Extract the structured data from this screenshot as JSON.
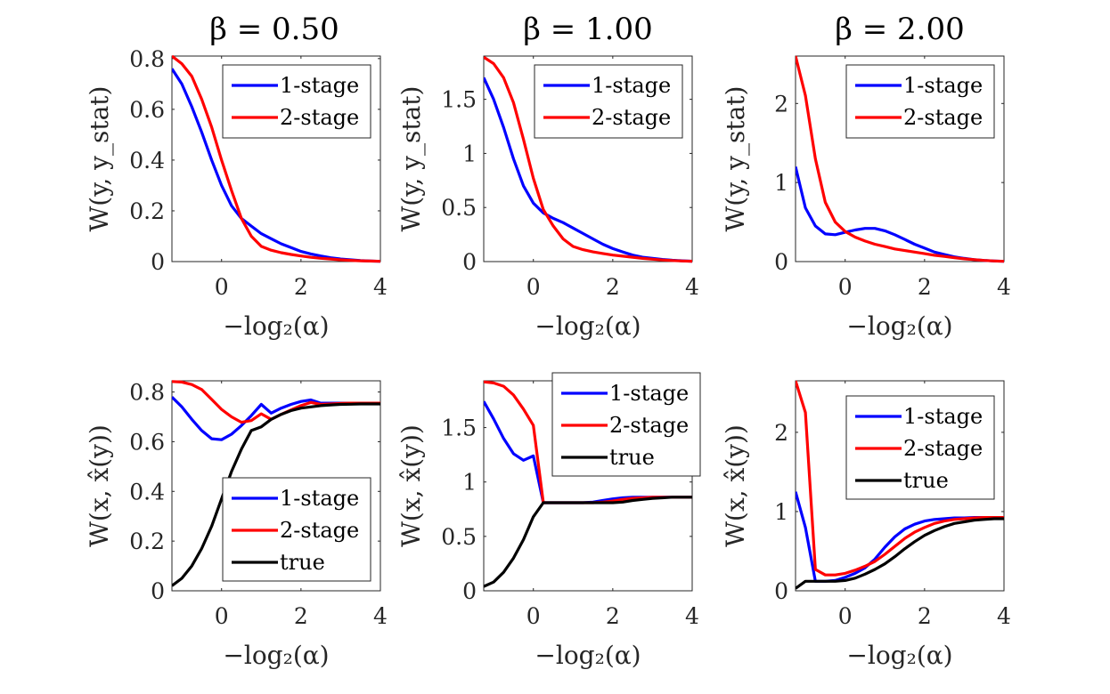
{
  "figure": {
    "x_label": "−log₂(α)",
    "titles": [
      "β = 0.50",
      "β = 1.00",
      "β = 2.00"
    ]
  },
  "chart_data": [
    {
      "type": "line",
      "id": "top-beta-0.50",
      "title": "β = 0.50",
      "xlabel": "−log₂(α)",
      "ylabel": "W(y, y_stat)",
      "xlim": [
        -1.25,
        4
      ],
      "ylim": [
        0,
        0.81
      ],
      "xticks": [
        0,
        2,
        4
      ],
      "yticks": [
        0,
        0.2,
        0.4,
        0.6,
        0.8
      ],
      "ytick_labels": [
        "0",
        "0.2",
        "0.4",
        "0.6",
        "0.8"
      ],
      "grid": false,
      "legend": "top-right",
      "x": [
        -1.25,
        -1,
        -0.75,
        -0.5,
        -0.25,
        0,
        0.25,
        0.5,
        0.75,
        1,
        1.25,
        1.5,
        1.75,
        2,
        2.25,
        2.5,
        2.75,
        3,
        3.25,
        3.5,
        3.75,
        4
      ],
      "series": [
        {
          "name": "1-stage",
          "color": "#0000ff",
          "values": [
            0.76,
            0.7,
            0.61,
            0.51,
            0.4,
            0.3,
            0.22,
            0.17,
            0.14,
            0.11,
            0.09,
            0.07,
            0.055,
            0.04,
            0.03,
            0.022,
            0.015,
            0.01,
            0.007,
            0.004,
            0.002,
            0.001
          ]
        },
        {
          "name": "2-stage",
          "color": "#ff0000",
          "values": [
            0.81,
            0.78,
            0.73,
            0.64,
            0.53,
            0.4,
            0.28,
            0.17,
            0.1,
            0.06,
            0.045,
            0.035,
            0.028,
            0.022,
            0.017,
            0.013,
            0.01,
            0.007,
            0.005,
            0.003,
            0.002,
            0.001
          ]
        }
      ]
    },
    {
      "type": "line",
      "id": "top-beta-1.00",
      "title": "β = 1.00",
      "xlabel": "−log₂(α)",
      "ylabel": "W(y, y_stat)",
      "xlim": [
        -1.25,
        4
      ],
      "ylim": [
        0,
        1.9
      ],
      "xticks": [
        0,
        2,
        4
      ],
      "yticks": [
        0,
        0.5,
        1,
        1.5
      ],
      "ytick_labels": [
        "0",
        "0.5",
        "1",
        "1.5"
      ],
      "grid": false,
      "legend": "top-right",
      "x": [
        -1.25,
        -1,
        -0.75,
        -0.5,
        -0.25,
        0,
        0.25,
        0.5,
        0.75,
        1,
        1.25,
        1.5,
        1.75,
        2,
        2.25,
        2.5,
        2.75,
        3,
        3.25,
        3.5,
        3.75,
        4
      ],
      "series": [
        {
          "name": "1-stage",
          "color": "#0000ff",
          "values": [
            1.7,
            1.5,
            1.24,
            0.95,
            0.7,
            0.54,
            0.45,
            0.4,
            0.36,
            0.31,
            0.26,
            0.21,
            0.16,
            0.12,
            0.09,
            0.06,
            0.04,
            0.03,
            0.02,
            0.012,
            0.007,
            0.003
          ]
        },
        {
          "name": "2-stage",
          "color": "#ff0000",
          "values": [
            1.89,
            1.83,
            1.7,
            1.47,
            1.13,
            0.77,
            0.48,
            0.33,
            0.21,
            0.14,
            0.11,
            0.09,
            0.075,
            0.06,
            0.05,
            0.04,
            0.03,
            0.022,
            0.015,
            0.01,
            0.006,
            0.003
          ]
        }
      ]
    },
    {
      "type": "line",
      "id": "top-beta-2.00",
      "title": "β = 2.00",
      "xlabel": "−log₂(α)",
      "ylabel": "W(y, y_stat)",
      "xlim": [
        -1.25,
        4
      ],
      "ylim": [
        0,
        2.6
      ],
      "xticks": [
        0,
        2,
        4
      ],
      "yticks": [
        0,
        1,
        2
      ],
      "ytick_labels": [
        "0",
        "1",
        "2"
      ],
      "grid": false,
      "legend": "top-right",
      "x": [
        -1.25,
        -1,
        -0.75,
        -0.5,
        -0.25,
        0,
        0.25,
        0.5,
        0.75,
        1,
        1.25,
        1.5,
        1.75,
        2,
        2.25,
        2.5,
        2.75,
        3,
        3.25,
        3.5,
        3.75,
        4
      ],
      "series": [
        {
          "name": "1-stage",
          "color": "#0000ff",
          "values": [
            1.2,
            0.68,
            0.45,
            0.35,
            0.34,
            0.37,
            0.4,
            0.42,
            0.42,
            0.39,
            0.34,
            0.28,
            0.22,
            0.17,
            0.12,
            0.09,
            0.06,
            0.04,
            0.025,
            0.015,
            0.008,
            0.003
          ]
        },
        {
          "name": "2-stage",
          "color": "#ff0000",
          "values": [
            2.6,
            2.1,
            1.3,
            0.75,
            0.5,
            0.38,
            0.31,
            0.26,
            0.22,
            0.19,
            0.16,
            0.14,
            0.12,
            0.1,
            0.08,
            0.065,
            0.05,
            0.035,
            0.025,
            0.015,
            0.008,
            0.003
          ]
        }
      ]
    },
    {
      "type": "line",
      "id": "bottom-beta-0.50",
      "title": "",
      "xlabel": "−log₂(α)",
      "ylabel": "W(x, x̂(y))",
      "xlim": [
        -1.25,
        4
      ],
      "ylim": [
        0,
        0.845
      ],
      "xticks": [
        0,
        2,
        4
      ],
      "yticks": [
        0,
        0.2,
        0.4,
        0.6,
        0.8
      ],
      "ytick_labels": [
        "0",
        "0.2",
        "0.4",
        "0.6",
        "0.8"
      ],
      "grid": false,
      "legend": "bottom-right",
      "x": [
        -1.25,
        -1,
        -0.75,
        -0.5,
        -0.25,
        0,
        0.25,
        0.5,
        0.75,
        1,
        1.25,
        1.5,
        1.75,
        2,
        2.25,
        2.5,
        2.75,
        3,
        3.25,
        3.5,
        3.75,
        4
      ],
      "series": [
        {
          "name": "1-stage",
          "color": "#0000ff",
          "values": [
            0.78,
            0.74,
            0.69,
            0.645,
            0.612,
            0.608,
            0.63,
            0.665,
            0.705,
            0.75,
            0.715,
            0.735,
            0.75,
            0.762,
            0.768,
            0.755,
            0.755,
            0.755,
            0.755,
            0.755,
            0.755,
            0.755
          ]
        },
        {
          "name": "2-stage",
          "color": "#ff0000",
          "values": [
            0.842,
            0.84,
            0.83,
            0.81,
            0.77,
            0.73,
            0.7,
            0.678,
            0.685,
            0.712,
            0.69,
            0.71,
            0.728,
            0.745,
            0.758,
            0.75,
            0.752,
            0.754,
            0.755,
            0.755,
            0.755,
            0.755
          ]
        },
        {
          "name": "true",
          "color": "#000000",
          "values": [
            0.02,
            0.05,
            0.1,
            0.17,
            0.26,
            0.37,
            0.48,
            0.57,
            0.645,
            0.66,
            0.69,
            0.71,
            0.725,
            0.735,
            0.74,
            0.745,
            0.748,
            0.75,
            0.751,
            0.752,
            0.752,
            0.752
          ]
        }
      ]
    },
    {
      "type": "line",
      "id": "bottom-beta-1.00",
      "title": "",
      "xlabel": "−log₂(α)",
      "ylabel": "W(x, x̂(y))",
      "xlim": [
        -1.25,
        4
      ],
      "ylim": [
        0,
        1.93
      ],
      "xticks": [
        0,
        2,
        4
      ],
      "yticks": [
        0,
        0.5,
        1,
        1.5
      ],
      "ytick_labels": [
        "0",
        "0.5",
        "1",
        "1.5"
      ],
      "grid": false,
      "legend": "top-right",
      "x": [
        -1.25,
        -1,
        -0.75,
        -0.5,
        -0.25,
        0,
        0.25,
        0.5,
        0.75,
        1,
        1.25,
        1.5,
        1.75,
        2,
        2.25,
        2.5,
        2.75,
        3,
        3.25,
        3.5,
        3.75,
        4
      ],
      "series": [
        {
          "name": "1-stage",
          "color": "#0000ff",
          "values": [
            1.74,
            1.58,
            1.4,
            1.26,
            1.2,
            1.24,
            0.81,
            0.81,
            0.81,
            0.81,
            0.81,
            0.815,
            0.83,
            0.845,
            0.855,
            0.86,
            0.86,
            0.86,
            0.86,
            0.86,
            0.86,
            0.86
          ]
        },
        {
          "name": "2-stage",
          "color": "#ff0000",
          "values": [
            1.92,
            1.91,
            1.88,
            1.8,
            1.67,
            1.52,
            0.81,
            0.81,
            0.81,
            0.81,
            0.81,
            0.81,
            0.815,
            0.825,
            0.84,
            0.85,
            0.855,
            0.86,
            0.86,
            0.86,
            0.86,
            0.86
          ]
        },
        {
          "name": "true",
          "color": "#000000",
          "values": [
            0.04,
            0.08,
            0.17,
            0.3,
            0.47,
            0.68,
            0.81,
            0.81,
            0.81,
            0.81,
            0.81,
            0.81,
            0.81,
            0.81,
            0.815,
            0.83,
            0.84,
            0.85,
            0.855,
            0.86,
            0.86,
            0.86
          ]
        }
      ]
    },
    {
      "type": "line",
      "id": "bottom-beta-2.00",
      "title": "",
      "xlabel": "−log₂(α)",
      "ylabel": "W(x, x̂(y))",
      "xlim": [
        -1.25,
        4
      ],
      "ylim": [
        0,
        2.65
      ],
      "xticks": [
        0,
        2,
        4
      ],
      "yticks": [
        0,
        1,
        2
      ],
      "ytick_labels": [
        "0",
        "1",
        "2"
      ],
      "grid": false,
      "legend": "top-right",
      "x": [
        -1.25,
        -1,
        -0.75,
        -0.5,
        -0.25,
        0,
        0.25,
        0.5,
        0.75,
        1,
        1.25,
        1.5,
        1.75,
        2,
        2.25,
        2.5,
        2.75,
        3,
        3.25,
        3.5,
        3.75,
        4
      ],
      "series": [
        {
          "name": "1-stage",
          "color": "#0000ff",
          "values": [
            1.25,
            0.8,
            0.12,
            0.12,
            0.13,
            0.17,
            0.22,
            0.29,
            0.4,
            0.55,
            0.68,
            0.78,
            0.84,
            0.88,
            0.9,
            0.91,
            0.92,
            0.92,
            0.925,
            0.925,
            0.925,
            0.925
          ]
        },
        {
          "name": "2-stage",
          "color": "#ff0000",
          "values": [
            2.65,
            2.25,
            0.27,
            0.2,
            0.2,
            0.22,
            0.26,
            0.31,
            0.37,
            0.46,
            0.56,
            0.66,
            0.74,
            0.8,
            0.85,
            0.88,
            0.9,
            0.91,
            0.92,
            0.925,
            0.925,
            0.925
          ]
        },
        {
          "name": "true",
          "color": "#000000",
          "values": [
            0.03,
            0.12,
            0.12,
            0.12,
            0.12,
            0.13,
            0.16,
            0.21,
            0.27,
            0.34,
            0.43,
            0.53,
            0.62,
            0.7,
            0.76,
            0.81,
            0.85,
            0.87,
            0.89,
            0.9,
            0.91,
            0.91
          ]
        }
      ]
    }
  ]
}
